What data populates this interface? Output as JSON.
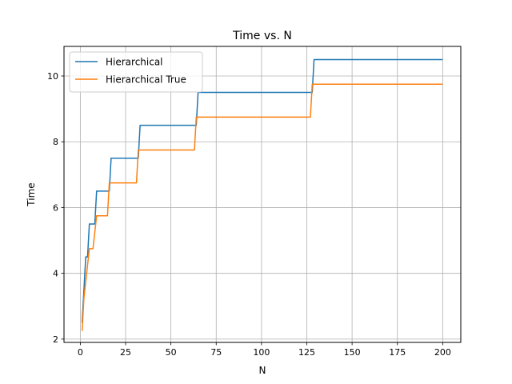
{
  "chart_data": {
    "type": "line",
    "title": "Time vs. N",
    "xlabel": "N",
    "ylabel": "Time",
    "xlim": [
      -9,
      210
    ],
    "ylim": [
      1.9,
      10.9
    ],
    "xticks": [
      0,
      25,
      50,
      75,
      100,
      125,
      150,
      175,
      200
    ],
    "yticks": [
      2,
      4,
      6,
      8,
      10
    ],
    "grid": true,
    "legend_position": "upper-left",
    "series": [
      {
        "name": "Hierarchical",
        "color": "#1f77b4",
        "x": [
          1,
          2,
          3,
          4,
          5,
          6,
          7,
          8,
          9,
          10,
          11,
          12,
          13,
          14,
          15,
          16,
          17,
          32,
          33,
          64,
          65,
          128,
          129,
          200
        ],
        "y": [
          2.5,
          3.5,
          4.5,
          4.5,
          5.5,
          5.5,
          5.5,
          5.5,
          6.5,
          6.5,
          6.5,
          6.5,
          6.5,
          6.5,
          6.5,
          6.5,
          7.5,
          7.5,
          8.5,
          8.5,
          9.5,
          9.5,
          10.5,
          10.5
        ]
      },
      {
        "name": "Hierarchical True",
        "color": "#ff7f0e",
        "x": [
          1,
          2,
          3,
          4,
          5,
          6,
          7,
          8,
          9,
          10,
          11,
          12,
          13,
          14,
          15,
          16,
          31,
          32,
          63,
          64,
          127,
          128,
          200
        ],
        "y": [
          2.25,
          3.25,
          3.75,
          4.25,
          4.75,
          4.75,
          4.75,
          5.25,
          5.75,
          5.75,
          5.75,
          5.75,
          5.75,
          5.75,
          5.75,
          6.75,
          6.75,
          7.75,
          7.75,
          8.75,
          8.75,
          9.75,
          9.75
        ]
      }
    ]
  }
}
